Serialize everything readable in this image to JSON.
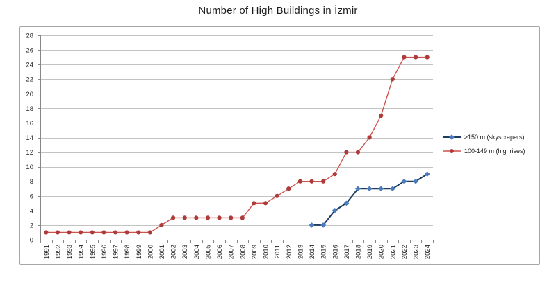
{
  "chart_data": {
    "type": "line",
    "title": "Number of High Buildings in İzmir",
    "x_categories": [
      "1991",
      "1992",
      "1993",
      "1994",
      "1995",
      "1996",
      "1997",
      "1998",
      "1999",
      "2000",
      "2001",
      "2002",
      "2003",
      "2004",
      "2005",
      "2006",
      "2007",
      "2008",
      "2009",
      "2010",
      "2011",
      "2012",
      "2013",
      "2014",
      "2015",
      "2016",
      "2017",
      "2018",
      "2019",
      "2020",
      "2021",
      "2022",
      "2023",
      "2024"
    ],
    "series": [
      {
        "name": "≥150 m (skyscrapers)",
        "marker": "diamond",
        "line_color": "#1f3a60",
        "marker_color": "#4a7cbe",
        "line_width": 2,
        "values": [
          null,
          null,
          null,
          null,
          null,
          null,
          null,
          null,
          null,
          null,
          null,
          null,
          null,
          null,
          null,
          null,
          null,
          null,
          null,
          null,
          null,
          null,
          null,
          2,
          2,
          4,
          5,
          7,
          7,
          7,
          7,
          8,
          8,
          9
        ]
      },
      {
        "name": "100-149 m (highrises)",
        "marker": "circle",
        "line_color": "#ce524f",
        "marker_color": "#ad3b39",
        "line_width": 1.4,
        "values": [
          1,
          1,
          1,
          1,
          1,
          1,
          1,
          1,
          1,
          1,
          2,
          3,
          3,
          3,
          3,
          3,
          3,
          3,
          5,
          5,
          6,
          7,
          8,
          8,
          8,
          9,
          12,
          12,
          14,
          17,
          22,
          25,
          25,
          25
        ]
      }
    ],
    "ylim": [
      0,
      28
    ],
    "yticks": [
      0,
      2,
      4,
      6,
      8,
      10,
      12,
      14,
      16,
      18,
      20,
      22,
      24,
      26,
      28
    ],
    "grid": "horizontal",
    "legend_position": "right-middle"
  },
  "colors": {
    "gridline": "#c3c3c3",
    "axis": "#878787",
    "border": "#a6a6a6",
    "text": "#242424"
  }
}
